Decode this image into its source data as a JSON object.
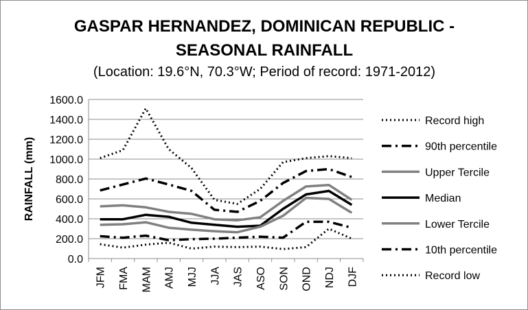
{
  "chart_data": {
    "type": "line",
    "title_lines": [
      "GASPAR HERNANDEZ, DOMINICAN REPUBLIC -",
      "SEASONAL RAINFALL"
    ],
    "subtitle": "(Location: 19.6°N, 70.3°W; Period of record: 1971-2012)",
    "ylabel": "RAINFALL (mm)",
    "xlabel": "",
    "ylim": [
      0,
      1600
    ],
    "ytick_labels": [
      "0.0",
      "200.0",
      "400.0",
      "600.0",
      "800.0",
      "1000.0",
      "1200.0",
      "1400.0",
      "1600.0"
    ],
    "categories": [
      "JFM",
      "FMA",
      "MAM",
      "AMJ",
      "MJJ",
      "JJA",
      "JAS",
      "ASO",
      "SON",
      "OND",
      "NDJ",
      "DJF"
    ],
    "grid": "horizontal",
    "legend_position": "right",
    "series": [
      {
        "name": "Record high",
        "style": "dotted",
        "color": "#000000",
        "values": [
          1010,
          1090,
          1510,
          1100,
          910,
          590,
          550,
          700,
          970,
          1010,
          1030,
          1010
        ]
      },
      {
        "name": "90th percentile",
        "style": "dashdot",
        "color": "#000000",
        "values": [
          685,
          745,
          805,
          745,
          680,
          490,
          470,
          580,
          760,
          880,
          900,
          820
        ]
      },
      {
        "name": "Upper Tercile",
        "style": "solid",
        "color": "#808080",
        "values": [
          525,
          535,
          515,
          470,
          450,
          395,
          385,
          415,
          580,
          725,
          740,
          590
        ]
      },
      {
        "name": "Median",
        "style": "solid",
        "color": "#000000",
        "values": [
          395,
          395,
          440,
          420,
          360,
          340,
          320,
          330,
          500,
          645,
          680,
          540
        ]
      },
      {
        "name": "Lower Tercile",
        "style": "solid",
        "color": "#808080",
        "values": [
          340,
          345,
          365,
          310,
          290,
          275,
          265,
          320,
          430,
          610,
          600,
          460
        ]
      },
      {
        "name": "10th percentile",
        "style": "dashdot",
        "color": "#000000",
        "values": [
          225,
          210,
          230,
          185,
          195,
          200,
          210,
          220,
          210,
          370,
          370,
          310
        ]
      },
      {
        "name": "Record low",
        "style": "dotted",
        "color": "#000000",
        "values": [
          145,
          110,
          140,
          160,
          100,
          120,
          115,
          120,
          95,
          115,
          300,
          200
        ]
      }
    ]
  }
}
